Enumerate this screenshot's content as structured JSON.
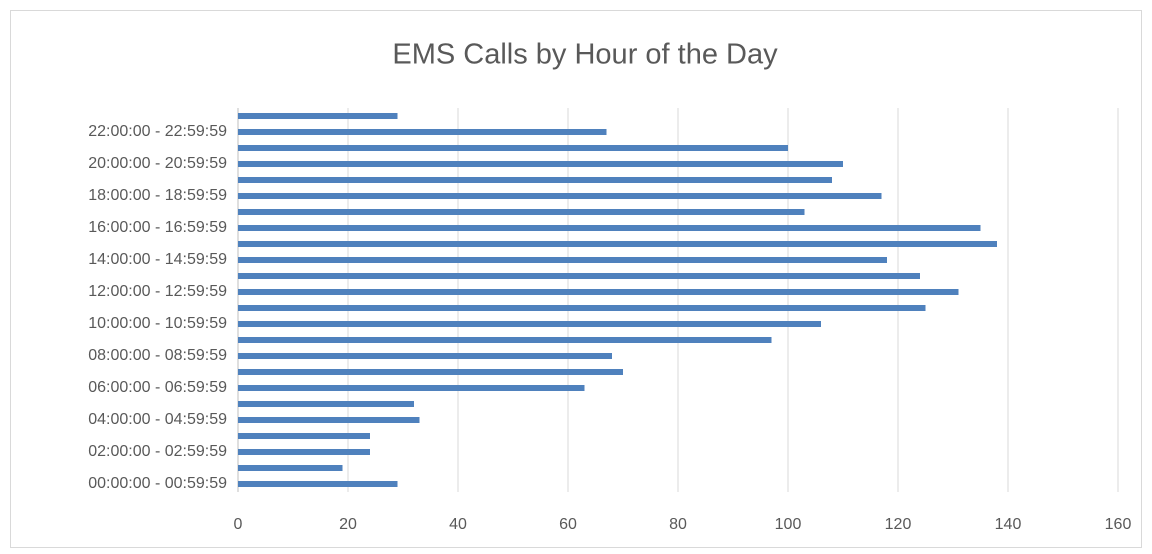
{
  "chart_data": {
    "type": "barh",
    "title": "EMS Calls by Hour of the Day",
    "categories": [
      "00:00:00 - 00:59:59",
      null,
      "02:00:00 - 02:59:59",
      null,
      "04:00:00 - 04:59:59",
      null,
      "06:00:00 - 06:59:59",
      null,
      "08:00:00 - 08:59:59",
      null,
      "10:00:00 - 10:59:59",
      null,
      "12:00:00 - 12:59:59",
      null,
      "14:00:00 - 14:59:59",
      null,
      "16:00:00 - 16:59:59",
      null,
      "18:00:00 - 18:59:59",
      null,
      "20:00:00 - 20:59:59",
      null,
      "22:00:00 - 22:59:59",
      null
    ],
    "values": [
      29,
      19,
      24,
      24,
      33,
      32,
      63,
      70,
      68,
      97,
      106,
      125,
      131,
      124,
      118,
      138,
      135,
      103,
      117,
      108,
      110,
      100,
      67,
      29
    ],
    "color": "#4f81bd",
    "xlim": [
      0,
      160
    ],
    "xticks": [
      0,
      20,
      40,
      60,
      80,
      100,
      120,
      140,
      160
    ],
    "grid": true
  }
}
